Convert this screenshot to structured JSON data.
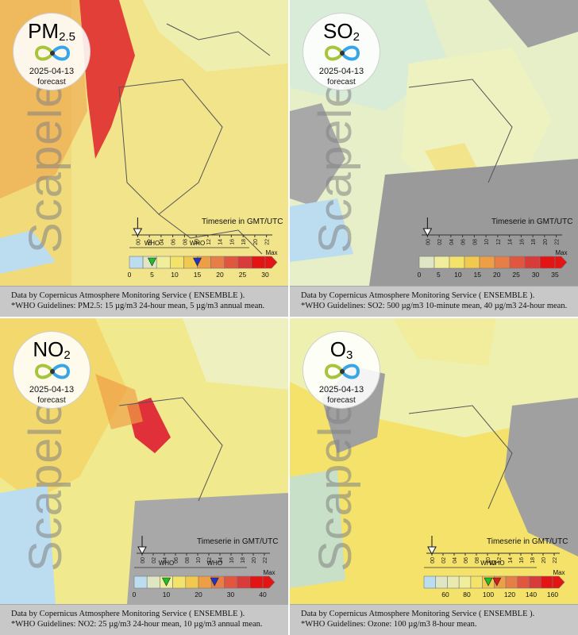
{
  "panels": [
    {
      "badge": {
        "name": "PM",
        "sub": "2.5",
        "date": "2025-04-13",
        "kind": "forecast"
      },
      "watermark": "Scapeler",
      "timeserie": "Timeserie in GMT/UTC",
      "hours": [
        "00",
        "02",
        "04",
        "06",
        "08",
        "10",
        "12",
        "14",
        "16",
        "18",
        "20",
        "22"
      ],
      "scale_colors": [
        "#bcdcf0",
        "#dfe6c4",
        "#f0ed9c",
        "#f4e36a",
        "#f1c94e",
        "#ee9f46",
        "#e77e48",
        "#e0563f",
        "#d93a3a",
        "#e31414"
      ],
      "ticks": [
        "0",
        "5",
        "10",
        "15",
        "20",
        "25",
        "30"
      ],
      "tick_values": [
        0,
        5,
        10,
        15,
        20,
        25,
        30
      ],
      "scale_max": 30,
      "max_label": "Max",
      "who_label": "WHO",
      "who_markers": [
        {
          "value": 5,
          "color": "#1fbf2a"
        },
        {
          "value": 15,
          "color": "#2233c8"
        }
      ],
      "caption_line1": "Data by Copernicus Atmosphere Monitoring Service ( ENSEMBLE ).",
      "caption_line2": "*WHO Guidelines: PM2.5: 15 µg/m3 24-hour mean, 5 µg/m3 annual mean."
    },
    {
      "badge": {
        "name": "SO",
        "sub": "2",
        "date": "2025-04-13",
        "kind": "forecast"
      },
      "watermark": "Scapeler",
      "timeserie": "Timeserie in GMT/UTC",
      "hours": [
        "00",
        "02",
        "04",
        "06",
        "08",
        "10",
        "12",
        "14",
        "16",
        "18",
        "20",
        "22"
      ],
      "scale_colors": [
        "#dfe6c4",
        "#f0ed9c",
        "#f4e36a",
        "#f1c94e",
        "#ee9f46",
        "#e77e48",
        "#e0563f",
        "#d93a3a",
        "#e31414"
      ],
      "ticks": [
        "0",
        "5",
        "10",
        "15",
        "20",
        "25",
        "30",
        "35"
      ],
      "tick_values": [
        0,
        5,
        10,
        15,
        20,
        25,
        30,
        35
      ],
      "scale_max": 35,
      "max_label": "Max",
      "who_label": "",
      "who_markers": [],
      "caption_line1": "Data by Copernicus Atmosphere Monitoring Service ( ENSEMBLE ).",
      "caption_line2": "*WHO Guidelines: SO2: 500 µg/m3 10-minute mean, 40 µg/m3 24-hour mean."
    },
    {
      "badge": {
        "name": "NO",
        "sub": "2",
        "date": "2025-04-13",
        "kind": "forecast"
      },
      "watermark": "Scapeler",
      "timeserie": "Timeserie in GMT/UTC",
      "hours": [
        "00",
        "02",
        "04",
        "06",
        "08",
        "10",
        "12",
        "14",
        "16",
        "18",
        "20",
        "22"
      ],
      "scale_colors": [
        "#bcdcf0",
        "#dfe6c4",
        "#f0ed9c",
        "#f4e36a",
        "#f1c94e",
        "#ee9f46",
        "#e77e48",
        "#e0563f",
        "#d93a3a",
        "#e31414"
      ],
      "ticks": [
        "0",
        "10",
        "20",
        "30",
        "40"
      ],
      "tick_values": [
        0,
        10,
        20,
        30,
        40
      ],
      "scale_max": 40,
      "max_label": "Max",
      "who_label": "WHO",
      "who_markers": [
        {
          "value": 10,
          "color": "#1fbf2a"
        },
        {
          "value": 25,
          "color": "#2233c8"
        }
      ],
      "caption_line1": "Data by Copernicus Atmosphere Monitoring Service ( ENSEMBLE ).",
      "caption_line2": "*WHO Guidelines: NO2: 25 µg/m3 24-hour mean, 10 µg/m3 annual mean."
    },
    {
      "badge": {
        "name": "O",
        "sub": "3",
        "date": "2025-04-13",
        "kind": "forecast"
      },
      "watermark": "Scapeler",
      "timeserie": "Timeserie in GMT/UTC",
      "hours": [
        "00",
        "02",
        "04",
        "06",
        "08",
        "10",
        "12",
        "14",
        "16",
        "18",
        "20",
        "22"
      ],
      "scale_colors": [
        "#bcdcf0",
        "#dfe6c4",
        "#e8eab0",
        "#f0ed9c",
        "#f4e36a",
        "#f1c94e",
        "#ee9f46",
        "#e77e48",
        "#e0563f",
        "#d93a3a",
        "#e31414"
      ],
      "ticks": [
        "60",
        "80",
        "100",
        "120",
        "140",
        "160"
      ],
      "tick_values": [
        60,
        80,
        100,
        120,
        140,
        160
      ],
      "scale_min": 40,
      "scale_max": 160,
      "max_label": "Max",
      "who_label": "WHO",
      "who_markers": [
        {
          "value": 100,
          "color": "#1fbf2a"
        },
        {
          "value": 108,
          "color": "#d41c1c"
        }
      ],
      "caption_line1": "Data by Copernicus Atmosphere Monitoring Service ( ENSEMBLE ).",
      "caption_line2": "*WHO Guidelines: Ozone: 100 µg/m3 8-hour mean."
    }
  ]
}
